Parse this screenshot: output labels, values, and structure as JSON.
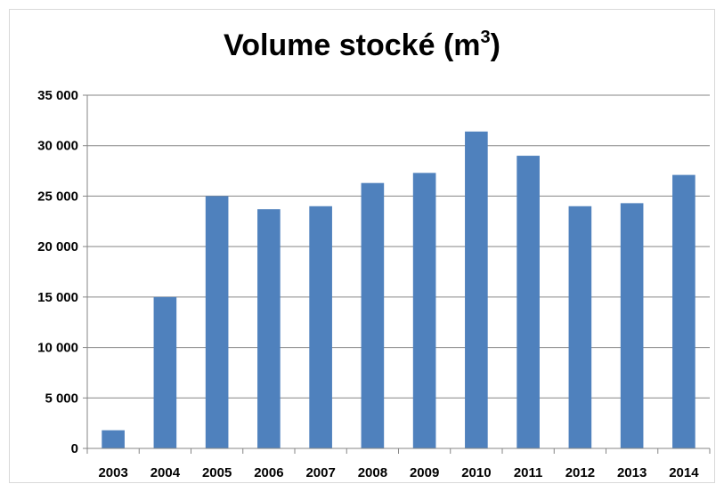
{
  "chart_data": {
    "type": "bar",
    "title": "Volume stocké (m",
    "title_superscript": "3",
    "title_suffix": ")",
    "xlabel": "",
    "ylabel": "",
    "categories": [
      "2003",
      "2004",
      "2005",
      "2006",
      "2007",
      "2008",
      "2009",
      "2010",
      "2011",
      "2012",
      "2013",
      "2014"
    ],
    "values": [
      1800,
      15000,
      25000,
      23700,
      24000,
      26300,
      27300,
      31400,
      29000,
      24000,
      24300,
      27100
    ],
    "ylim": [
      0,
      35000
    ],
    "yticks": [
      0,
      5000,
      10000,
      15000,
      20000,
      25000,
      30000,
      35000
    ],
    "ytick_labels": [
      "0",
      "5 000",
      "10 000",
      "15 000",
      "20 000",
      "25 000",
      "30 000",
      "35 000"
    ],
    "grid": true,
    "legend": "none",
    "bar_color": "#4f81bd",
    "grid_color": "#868686"
  }
}
